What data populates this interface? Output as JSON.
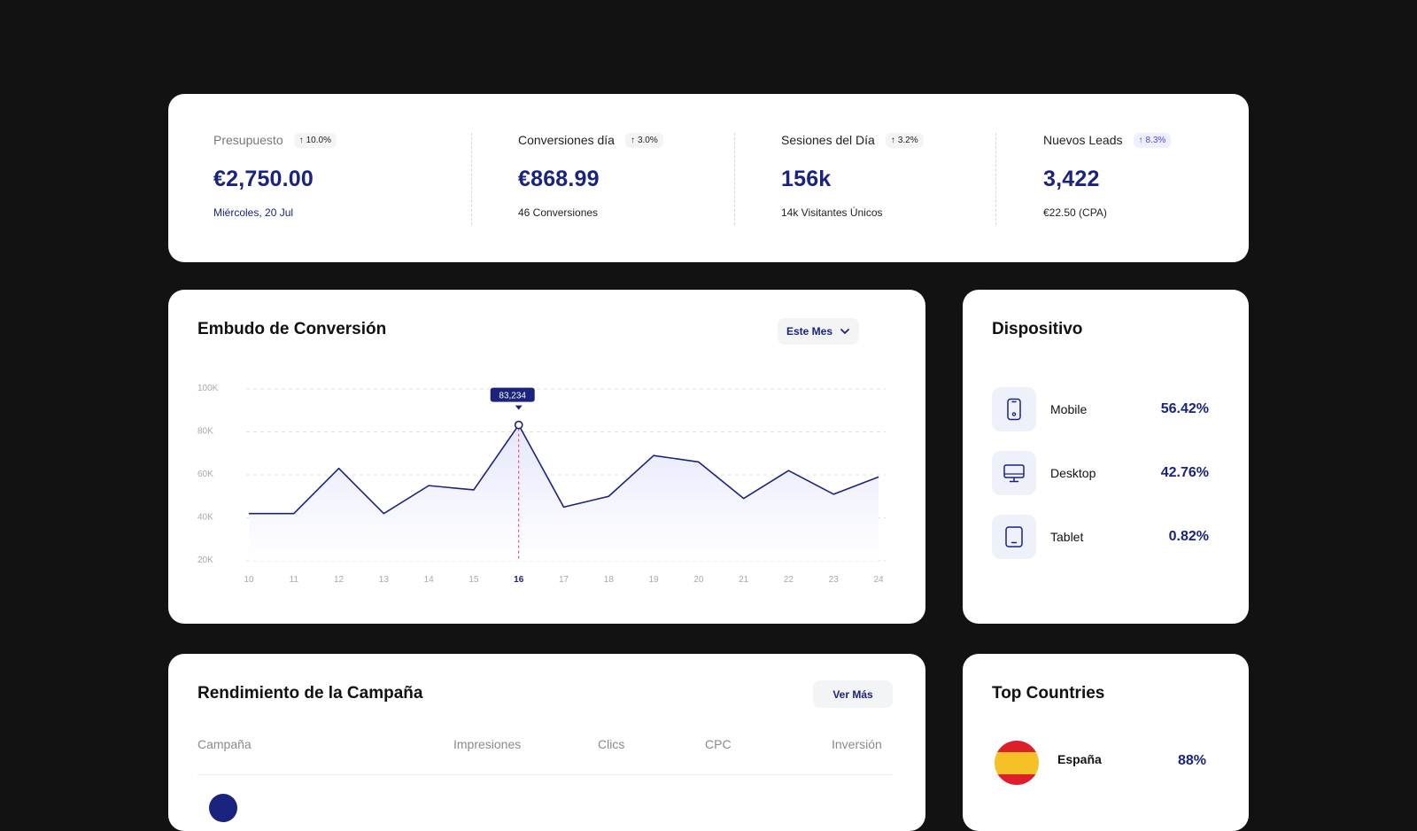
{
  "kpis": [
    {
      "label": "Presupuesto",
      "change": "10.0%",
      "value": "€2,750.00",
      "sub": "Miércoles, 20 Jul"
    },
    {
      "label": "Conversiones día",
      "change": "3.0%",
      "value": "€868.99",
      "sub": "46 Conversiones"
    },
    {
      "label": "Sesiones del Día",
      "change": "3.2%",
      "value": "156k",
      "sub": "14k Visitantes Únicos"
    },
    {
      "label": "Nuevos Leads",
      "change": "8.3%",
      "value": "3,422",
      "sub": "€22.50 (CPA)"
    }
  ],
  "funnel": {
    "title": "Embudo de Conversión",
    "period_select": "Este Mes"
  },
  "chart_data": {
    "type": "area",
    "x": [
      10,
      11,
      12,
      13,
      14,
      15,
      16,
      17,
      18,
      19,
      20,
      21,
      22,
      23,
      24
    ],
    "series": [
      {
        "values": [
          42000,
          42000,
          63000,
          42000,
          55000,
          53000,
          83234,
          45000,
          50000,
          69000,
          66000,
          49000,
          62000,
          51000,
          59000
        ]
      }
    ],
    "y_ticks": [
      "100K",
      "80K",
      "60K",
      "40K",
      "20K"
    ],
    "ylim": [
      20000,
      100000
    ],
    "highlight": {
      "x": 16,
      "value": 83234,
      "label": "83,234"
    },
    "grid": true,
    "colors": {
      "line": "#1a237e",
      "fill": "#e4e6fb",
      "marker": "#e53955"
    }
  },
  "device": {
    "title": "Dispositivo",
    "items": [
      {
        "name": "Mobile",
        "pct": "56.42%",
        "icon": "mobile-icon"
      },
      {
        "name": "Desktop",
        "pct": "42.76%",
        "icon": "desktop-icon"
      },
      {
        "name": "Tablet",
        "pct": "0.82%",
        "icon": "tablet-icon"
      }
    ]
  },
  "campaign": {
    "title": "Rendimiento de la Campaña",
    "more_label": "Ver Más",
    "columns": [
      "Campaña",
      "Impresiones",
      "Clics",
      "CPC",
      "Inversión"
    ]
  },
  "countries": {
    "title": "Top Countries",
    "items": [
      {
        "name": "España",
        "pct": "88%"
      }
    ]
  },
  "colors": {
    "accent": "#1a237e",
    "background": "#121212",
    "card": "#ffffff"
  }
}
